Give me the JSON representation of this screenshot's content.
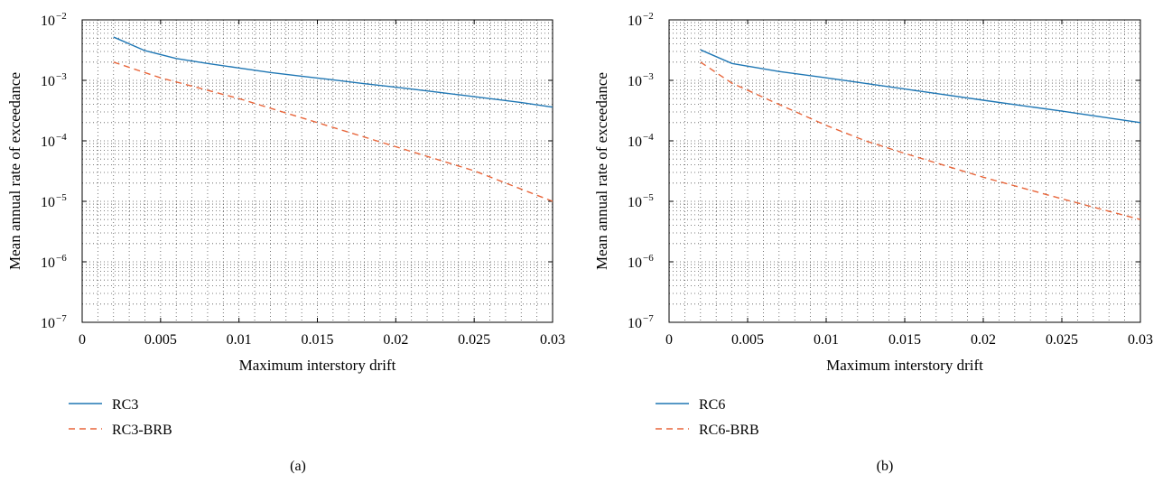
{
  "figure": {
    "captions": [
      "(a)",
      "(b)"
    ]
  },
  "chart_data": [
    {
      "type": "line",
      "panel_label": "(a)",
      "xlabel": "Maximum interstory drift",
      "ylabel": "Mean annual rate of exceedance",
      "xlim": [
        0,
        0.03
      ],
      "ylim": [
        1e-07,
        0.01
      ],
      "yscale": "log",
      "grid": "dotted, major and minor",
      "legend_position": "below-left",
      "x_ticks": [
        {
          "value": 0,
          "label": "0"
        },
        {
          "value": 0.005,
          "label": "0.005"
        },
        {
          "value": 0.01,
          "label": "0.01"
        },
        {
          "value": 0.015,
          "label": "0.015"
        },
        {
          "value": 0.02,
          "label": "0.02"
        },
        {
          "value": 0.025,
          "label": "0.025"
        },
        {
          "value": 0.03,
          "label": "0.03"
        }
      ],
      "y_ticks": [
        {
          "exp": -2,
          "base": "10",
          "sup": "−2"
        },
        {
          "exp": -3,
          "base": "10",
          "sup": "−3"
        },
        {
          "exp": -4,
          "base": "10",
          "sup": "−4"
        },
        {
          "exp": -5,
          "base": "10",
          "sup": "−5"
        },
        {
          "exp": -6,
          "base": "10",
          "sup": "−6"
        },
        {
          "exp": -7,
          "base": "10",
          "sup": "−7"
        }
      ],
      "series": [
        {
          "name": "RC3",
          "color": "#1f77b4",
          "dash": "solid",
          "x": [
            0.002,
            0.004,
            0.006,
            0.008,
            0.01,
            0.012,
            0.014,
            0.016,
            0.018,
            0.02,
            0.022,
            0.024,
            0.026,
            0.028,
            0.03
          ],
          "y": [
            0.0052,
            0.0031,
            0.0023,
            0.0019,
            0.0016,
            0.00135,
            0.00117,
            0.00102,
            0.00088,
            0.00077,
            0.00067,
            0.00058,
            0.0005,
            0.00043,
            0.00036
          ]
        },
        {
          "name": "RC3-BRB",
          "color": "#e8653a",
          "dash": "dashed",
          "x": [
            0.002,
            0.005,
            0.01,
            0.015,
            0.02,
            0.025,
            0.03
          ],
          "y": [
            0.002,
            0.0011,
            0.0005,
            0.0002,
            8e-05,
            3.2e-05,
            1e-05
          ]
        }
      ]
    },
    {
      "type": "line",
      "panel_label": "(b)",
      "xlabel": "Maximum interstory drift",
      "ylabel": "Mean annual rate of exceedance",
      "xlim": [
        0,
        0.03
      ],
      "ylim": [
        1e-07,
        0.01
      ],
      "yscale": "log",
      "grid": "dotted, major and minor",
      "legend_position": "below-left",
      "x_ticks": [
        {
          "value": 0,
          "label": "0"
        },
        {
          "value": 0.005,
          "label": "0.005"
        },
        {
          "value": 0.01,
          "label": "0.01"
        },
        {
          "value": 0.015,
          "label": "0.015"
        },
        {
          "value": 0.02,
          "label": "0.02"
        },
        {
          "value": 0.025,
          "label": "0.025"
        },
        {
          "value": 0.03,
          "label": "0.03"
        }
      ],
      "y_ticks": [
        {
          "exp": -2,
          "base": "10",
          "sup": "−2"
        },
        {
          "exp": -3,
          "base": "10",
          "sup": "−3"
        },
        {
          "exp": -4,
          "base": "10",
          "sup": "−4"
        },
        {
          "exp": -5,
          "base": "10",
          "sup": "−5"
        },
        {
          "exp": -6,
          "base": "10",
          "sup": "−6"
        },
        {
          "exp": -7,
          "base": "10",
          "sup": "−7"
        }
      ],
      "series": [
        {
          "name": "RC6",
          "color": "#1f77b4",
          "dash": "solid",
          "x": [
            0.002,
            0.004,
            0.007,
            0.01,
            0.015,
            0.02,
            0.025,
            0.03
          ],
          "y": [
            0.0032,
            0.0019,
            0.0014,
            0.0011,
            0.00072,
            0.00047,
            0.00031,
            0.0002
          ]
        },
        {
          "name": "RC6-BRB",
          "color": "#e8653a",
          "dash": "dashed",
          "x": [
            0.002,
            0.004,
            0.007,
            0.01,
            0.0125,
            0.015,
            0.02,
            0.025,
            0.03
          ],
          "y": [
            0.002,
            0.0009,
            0.0004,
            0.00018,
            0.0001,
            6.2e-05,
            2.5e-05,
            1.1e-05,
            5e-06
          ]
        }
      ]
    }
  ]
}
